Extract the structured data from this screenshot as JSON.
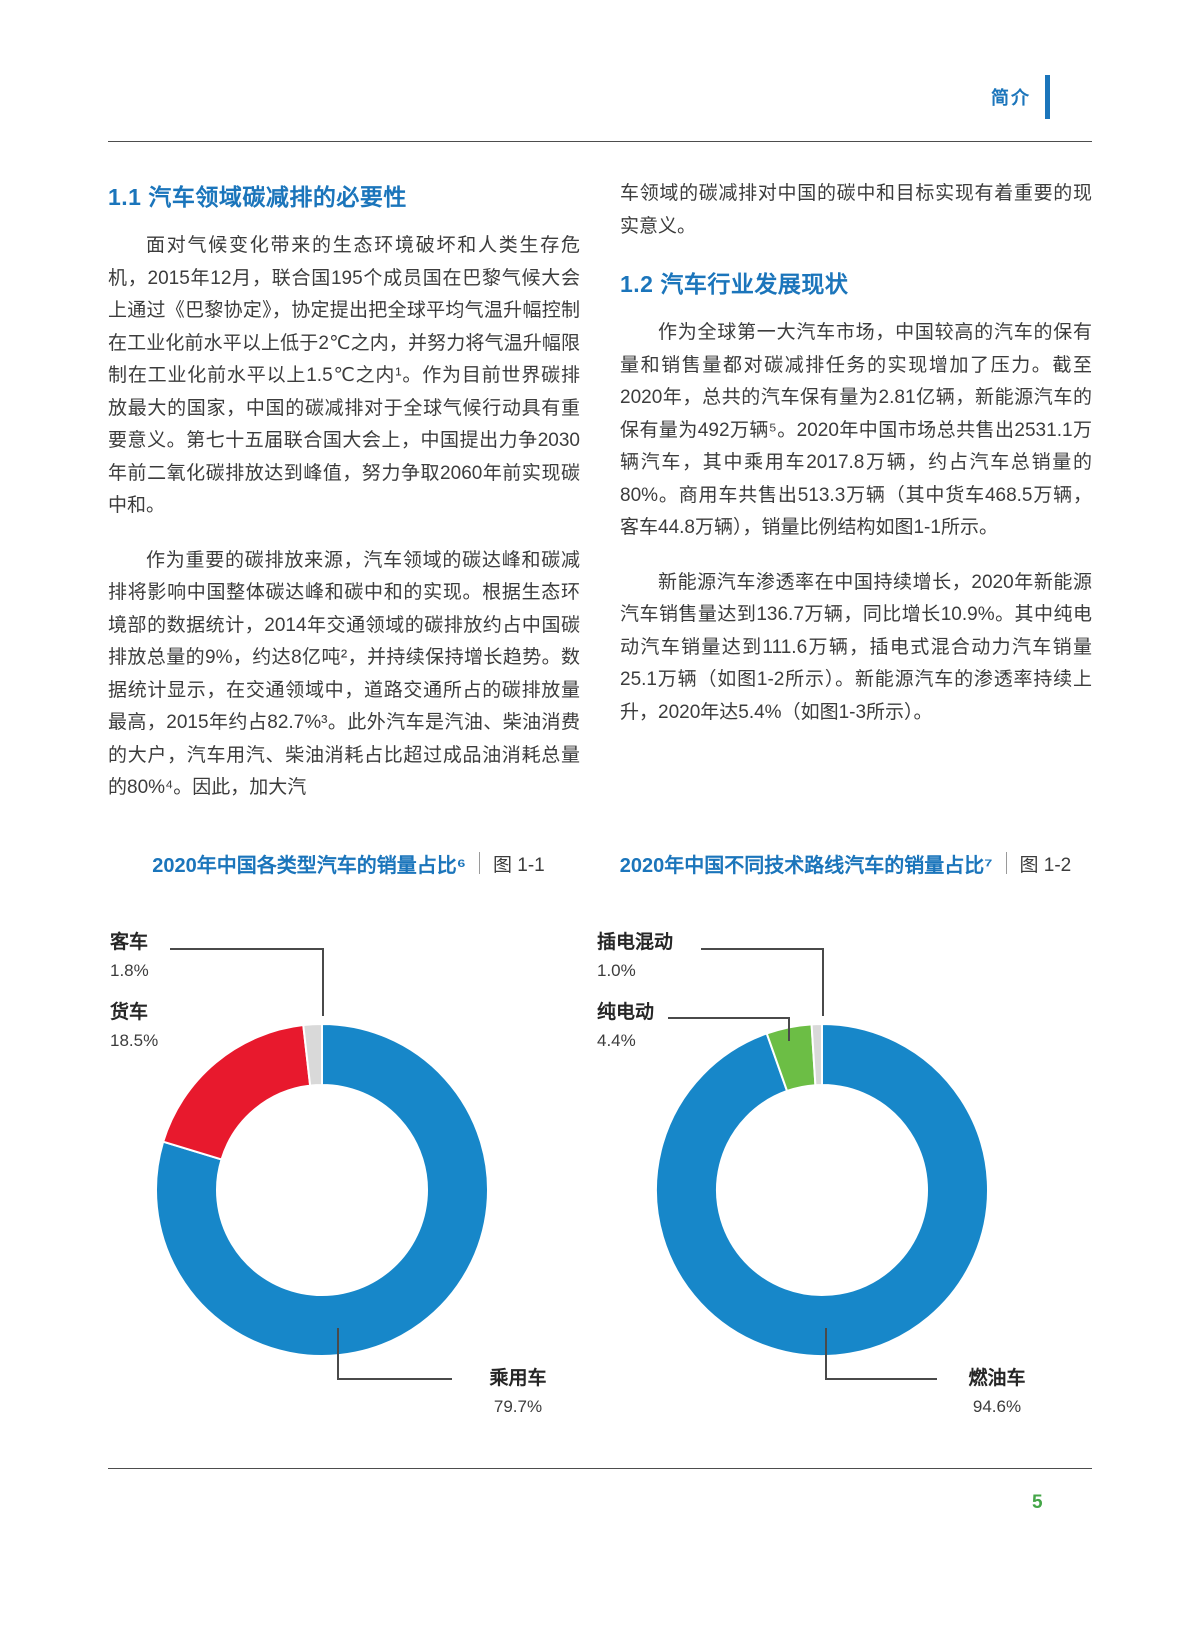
{
  "header": {
    "label": "简介"
  },
  "footer": {
    "page_number": "5"
  },
  "colors": {
    "accent-blue": "#1b75bb",
    "text-color": "#3c3c3c",
    "line-color": "#4a4a4a",
    "page-green": "#44a648",
    "chart-blue": "#1787c9",
    "chart-red": "#e8192d",
    "chart-green": "#6cbe45",
    "chart-gray": "#d9d9d9"
  },
  "sections": {
    "s11": {
      "title": "1.1 汽车领域碳减排的必要性",
      "p1": "面对气候变化带来的生态环境破坏和人类生存危机，2015年12月，联合国195个成员国在巴黎气候大会上通过《巴黎协定》，协定提出把全球平均气温升幅控制在工业化前水平以上低于2℃之内，并努力将气温升幅限制在工业化前水平以上1.5℃之内¹。作为目前世界碳排放最大的国家，中国的碳减排对于全球气候行动具有重要意义。第七十五届联合国大会上，中国提出力争2030年前二氧化碳排放达到峰值，努力争取2060年前实现碳中和。",
      "p2": "作为重要的碳排放来源，汽车领域的碳达峰和碳减排将影响中国整体碳达峰和碳中和的实现。根据生态环境部的数据统计，2014年交通领域的碳排放约占中国碳排放总量的9%，约达8亿吨²，并持续保持增长趋势。数据统计显示，在交通领域中，道路交通所占的碳排放量最高，2015年约占82.7%³。此外汽车是汽油、柴油消费的大户，汽车用汽、柴油消耗占比超过成品油消耗总量的80%⁴。因此，加大汽",
      "p2_cont": "车领域的碳减排对中国的碳中和目标实现有着重要的现实意义。"
    },
    "s12": {
      "title": "1.2 汽车行业发展现状",
      "p1": "作为全球第一大汽车市场，中国较高的汽车的保有量和销售量都对碳减排任务的实现增加了压力。截至2020年，总共的汽车保有量为2.81亿辆，新能源汽车的保有量为492万辆⁵。2020年中国市场总共售出2531.1万辆汽车，其中乘用车2017.8万辆，约占汽车总销量的80%。商用车共售出513.3万辆（其中货车468.5万辆，客车44.8万辆），销量比例结构如图1-1所示。",
      "p2": "新能源汽车渗透率在中国持续增长，2020年新能源汽车销售量达到136.7万辆，同比增长10.9%。其中纯电动汽车销量达到111.6万辆，插电式混合动力汽车销量25.1万辆（如图1-2所示）。新能源汽车的渗透率持续上升，2020年达5.4%（如图1-3所示）。"
    }
  },
  "chart_data": [
    {
      "type": "pie",
      "donut": true,
      "title": "2020年中国各类型汽车的销量占比⁶",
      "figure_label": "图 1-1",
      "unit": "%",
      "start_angle": "top",
      "direction": "clockwise",
      "inner_radius_ratio": 0.63,
      "segments": [
        {
          "label": "乘用车",
          "value": 79.7,
          "pct": "79.7%",
          "color": "#1787c9"
        },
        {
          "label": "货车",
          "value": 18.5,
          "pct": "18.5%",
          "color": "#e8192d"
        },
        {
          "label": "客车",
          "value": 1.8,
          "pct": "1.8%",
          "color": "#d9d9d9"
        }
      ]
    },
    {
      "type": "pie",
      "donut": true,
      "title": "2020年中国不同技术路线汽车的销量占比⁷",
      "figure_label": "图 1-2",
      "unit": "%",
      "start_angle": "top",
      "direction": "clockwise",
      "inner_radius_ratio": 0.63,
      "segments": [
        {
          "label": "燃油车",
          "value": 94.6,
          "pct": "94.6%",
          "color": "#1787c9"
        },
        {
          "label": "纯电动",
          "value": 4.4,
          "pct": "4.4%",
          "color": "#6cbe45"
        },
        {
          "label": "插电混动",
          "value": 1.0,
          "pct": "1.0%",
          "color": "#d9d9d9"
        }
      ]
    }
  ]
}
